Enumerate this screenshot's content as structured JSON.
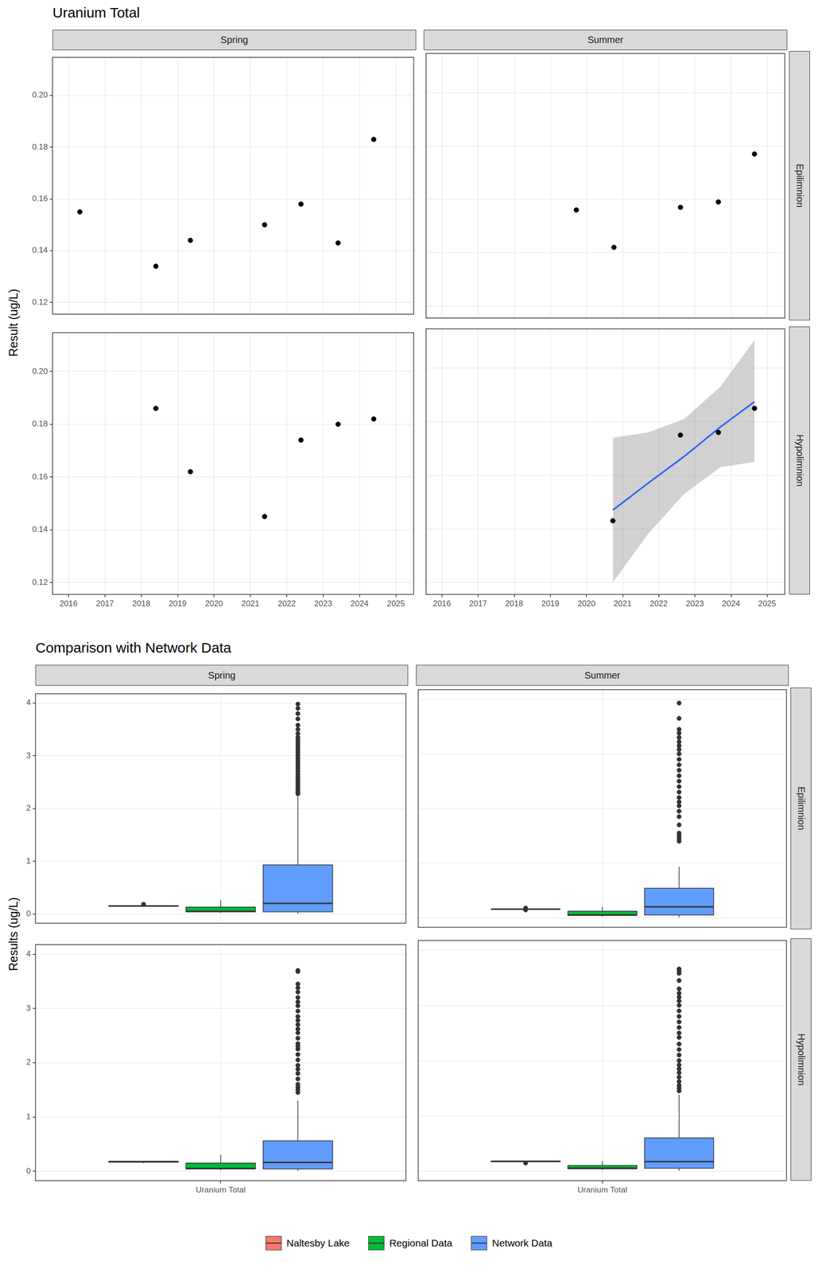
{
  "chart_data": [
    {
      "type": "scatter",
      "title": "Uranium Total",
      "y_label": "Result (ug/L)",
      "columns": [
        "Spring",
        "Summer"
      ],
      "rows": [
        "Epilimnion",
        "Hypolimnion"
      ],
      "xlim": [
        2015.56,
        2025.49
      ],
      "xticks": [
        2016,
        2017,
        2018,
        2019,
        2020,
        2021,
        2022,
        2023,
        2024,
        2025
      ],
      "ylim": [
        0.1155,
        0.2147
      ],
      "yticks": [
        0.12,
        0.14,
        0.16,
        0.18,
        {
          "value": 0.2,
          "label": "0.20"
        }
      ],
      "grid": true,
      "color": "#000000",
      "marker": "circle",
      "panels": [
        {
          "column": "Spring",
          "row": "Epilimnion",
          "x": [
            2016.31,
            2018.4,
            2019.35,
            2021.39,
            2022.39,
            2023.41,
            2024.39
          ],
          "values": [
            0.155,
            0.134,
            0.144,
            0.15,
            0.158,
            0.143,
            0.183
          ]
        },
        {
          "column": "Summer",
          "row": "Epilimnion",
          "x": [
            2019.72,
            2020.76,
            2022.6,
            2023.65,
            2024.65
          ],
          "values": [
            0.156,
            0.142,
            0.157,
            0.159,
            0.177
          ]
        },
        {
          "column": "Spring",
          "row": "Hypolimnion",
          "x": [
            2018.4,
            2019.35,
            2021.39,
            2022.39,
            2023.41,
            2024.39
          ],
          "values": [
            0.186,
            0.162,
            0.145,
            0.174,
            0.18,
            0.182
          ]
        },
        {
          "column": "Summer",
          "row": "Hypolimnion",
          "x": [
            2020.73,
            2022.6,
            2023.65,
            2024.65
          ],
          "values": [
            0.143,
            0.175,
            0.176,
            0.185
          ],
          "trend": {
            "color": "#3366FF",
            "x": [
              2020.73,
              2021.7,
              2022.7,
              2023.7,
              2024.65
            ],
            "values": [
              0.147,
              0.157,
              0.167,
              0.178,
              0.1875
            ],
            "lower": [
              0.12,
              0.138,
              0.153,
              0.163,
              0.165
            ],
            "upper": [
              0.174,
              0.176,
              0.181,
              0.193,
              0.2105
            ]
          }
        }
      ]
    },
    {
      "type": "boxplot",
      "title": "Comparison with Network Data",
      "y_label": "Results (ug/L)",
      "columns": [
        "Spring",
        "Summer"
      ],
      "rows": [
        "Epilimnion",
        "Hypolimnion"
      ],
      "categories": [
        "Uranium Total"
      ],
      "ylim": [
        -0.175,
        4.175
      ],
      "yticks": [
        0,
        1,
        2,
        3,
        4
      ],
      "grid": true,
      "legend": "bottom",
      "series": [
        {
          "name": "Naltesby Lake",
          "color": "#F8766D"
        },
        {
          "name": "Regional Data",
          "color": "#00BA38"
        },
        {
          "name": "Network Data",
          "color": "#619CFF"
        }
      ],
      "panels": [
        {
          "column": "Spring",
          "row": "Epilimnion",
          "boxes": [
            {
              "min": 0.134,
              "q1": 0.1435,
              "median": 0.15,
              "q3": 0.1565,
              "max": 0.158,
              "outliers": [
                0.183
              ]
            },
            {
              "min": 0.02,
              "q1": 0.04,
              "median": 0.05,
              "q3": 0.13,
              "max": 0.26,
              "outliers": []
            },
            {
              "min": 0.005,
              "q1": 0.04,
              "median": 0.2,
              "q3": 0.93,
              "max": 2.25,
              "outliers": [
                2.28,
                2.3,
                2.33,
                2.36,
                2.4,
                2.44,
                2.48,
                2.52,
                2.56,
                2.6,
                2.65,
                2.7,
                2.75,
                2.8,
                2.85,
                2.9,
                2.95,
                3.0,
                3.05,
                3.1,
                3.15,
                3.2,
                3.25,
                3.3,
                3.35,
                3.42,
                3.5,
                3.58,
                3.7,
                3.8,
                3.9,
                3.98
              ]
            }
          ]
        },
        {
          "column": "Summer",
          "row": "Epilimnion",
          "boxes": [
            {
              "min": 0.156,
              "q1": 0.156,
              "median": 0.157,
              "q3": 0.159,
              "max": 0.159,
              "outliers": [
                0.142,
                0.177
              ]
            },
            {
              "min": 0.02,
              "q1": 0.04,
              "median": 0.05,
              "q3": 0.12,
              "max": 0.2,
              "outliers": []
            },
            {
              "min": 0.005,
              "q1": 0.05,
              "median": 0.2,
              "q3": 0.54,
              "max": 0.93,
              "outliers": [
                1.4,
                1.45,
                1.5,
                1.55,
                1.7,
                1.85,
                1.95,
                2.05,
                2.12,
                2.2,
                2.3,
                2.4,
                2.5,
                2.6,
                2.7,
                2.8,
                2.9,
                3.0,
                3.08,
                3.15,
                3.22,
                3.3,
                3.38,
                3.45,
                3.65,
                3.93
              ]
            }
          ]
        },
        {
          "column": "Spring",
          "row": "Hypolimnion",
          "boxes": [
            {
              "min": 0.145,
              "q1": 0.165,
              "median": 0.177,
              "q3": 0.1815,
              "max": 0.186,
              "outliers": []
            },
            {
              "min": 0.02,
              "q1": 0.04,
              "median": 0.05,
              "q3": 0.15,
              "max": 0.3,
              "outliers": []
            },
            {
              "min": 0.005,
              "q1": 0.04,
              "median": 0.16,
              "q3": 0.56,
              "max": 1.3,
              "outliers": [
                1.45,
                1.5,
                1.55,
                1.6,
                1.7,
                1.8,
                1.88,
                1.95,
                2.05,
                2.15,
                2.25,
                2.3,
                2.35,
                2.45,
                2.55,
                2.62,
                2.7,
                2.78,
                2.85,
                2.95,
                3.05,
                3.12,
                3.2,
                3.3,
                3.38,
                3.45,
                3.68,
                3.7
              ]
            }
          ]
        },
        {
          "column": "Summer",
          "row": "Hypolimnion",
          "boxes": [
            {
              "min": 0.175,
              "q1": 0.167,
              "median": 0.1755,
              "q3": 0.178,
              "max": 0.185,
              "outliers": [
                0.143
              ]
            },
            {
              "min": 0.02,
              "q1": 0.04,
              "median": 0.05,
              "q3": 0.1,
              "max": 0.18,
              "outliers": []
            },
            {
              "min": 0.005,
              "q1": 0.05,
              "median": 0.17,
              "q3": 0.6,
              "max": 1.38,
              "outliers": [
                1.45,
                1.5,
                1.55,
                1.62,
                1.7,
                1.78,
                1.85,
                1.92,
                2.0,
                2.1,
                2.2,
                2.3,
                2.42,
                2.5,
                2.6,
                2.7,
                2.8,
                2.9,
                3.0,
                3.08,
                3.15,
                3.22,
                3.3,
                3.45,
                3.58,
                3.62,
                3.66
              ]
            }
          ]
        }
      ]
    }
  ]
}
